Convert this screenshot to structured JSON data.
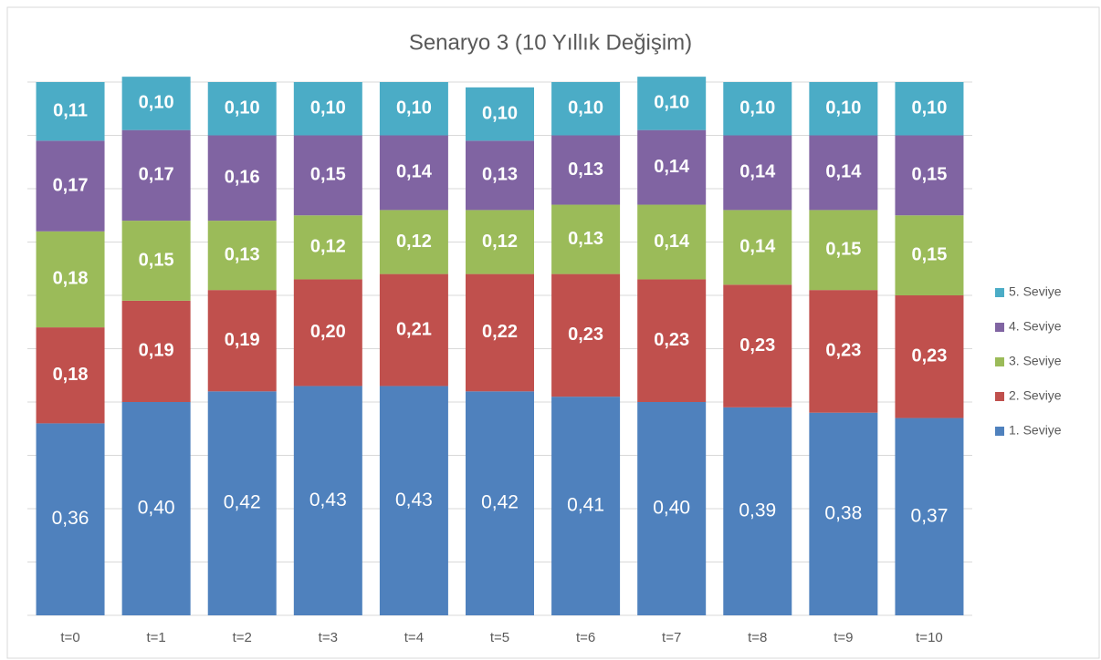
{
  "chart_data": {
    "type": "stacked_bar",
    "title": "Senaryo 3 (10 Yıllık Değişim)",
    "categories": [
      "t=0",
      "t=1",
      "t=2",
      "t=3",
      "t=4",
      "t=5",
      "t=6",
      "t=7",
      "t=8",
      "t=9",
      "t=10"
    ],
    "series": [
      {
        "name": "1. Seviye",
        "color": "#4f81bd",
        "values": [
          0.36,
          0.4,
          0.42,
          0.43,
          0.43,
          0.42,
          0.41,
          0.4,
          0.39,
          0.38,
          0.37
        ],
        "value_labels": [
          "0,36",
          "0,40",
          "0,42",
          "0,43",
          "0,43",
          "0,42",
          "0,41",
          "0,40",
          "0,39",
          "0,38",
          "0,37"
        ]
      },
      {
        "name": "2. Seviye",
        "color": "#c0504d",
        "values": [
          0.18,
          0.19,
          0.19,
          0.2,
          0.21,
          0.22,
          0.23,
          0.23,
          0.23,
          0.23,
          0.23
        ],
        "value_labels": [
          "0,18",
          "0,19",
          "0,19",
          "0,20",
          "0,21",
          "0,22",
          "0,23",
          "0,23",
          "0,23",
          "0,23",
          "0,23"
        ]
      },
      {
        "name": "3. Seviye",
        "color": "#9bbb59",
        "values": [
          0.18,
          0.15,
          0.13,
          0.12,
          0.12,
          0.12,
          0.13,
          0.14,
          0.14,
          0.15,
          0.15
        ],
        "value_labels": [
          "0,18",
          "0,15",
          "0,13",
          "0,12",
          "0,12",
          "0,12",
          "0,13",
          "0,14",
          "0,14",
          "0,15",
          "0,15"
        ]
      },
      {
        "name": "4. Seviye",
        "color": "#8064a2",
        "values": [
          0.17,
          0.17,
          0.16,
          0.15,
          0.14,
          0.13,
          0.13,
          0.14,
          0.14,
          0.14,
          0.15
        ],
        "value_labels": [
          "0,17",
          "0,17",
          "0,16",
          "0,15",
          "0,14",
          "0,13",
          "0,13",
          "0,14",
          "0,14",
          "0,14",
          "0,15"
        ]
      },
      {
        "name": "5. Seviye",
        "color": "#4bacc6",
        "values": [
          0.11,
          0.1,
          0.1,
          0.1,
          0.1,
          0.1,
          0.1,
          0.1,
          0.1,
          0.1,
          0.1
        ],
        "value_labels": [
          "0,11",
          "0,10",
          "0,10",
          "0,10",
          "0,10",
          "0,10",
          "0,10",
          "0,10",
          "0,10",
          "0,10",
          "0,10"
        ]
      }
    ],
    "ylim": [
      0,
      1
    ],
    "yticks": [
      0,
      0.1,
      0.2,
      0.3,
      0.4,
      0.5,
      0.6,
      0.7,
      0.8,
      0.9,
      1
    ],
    "grid": true,
    "legend": "right"
  }
}
